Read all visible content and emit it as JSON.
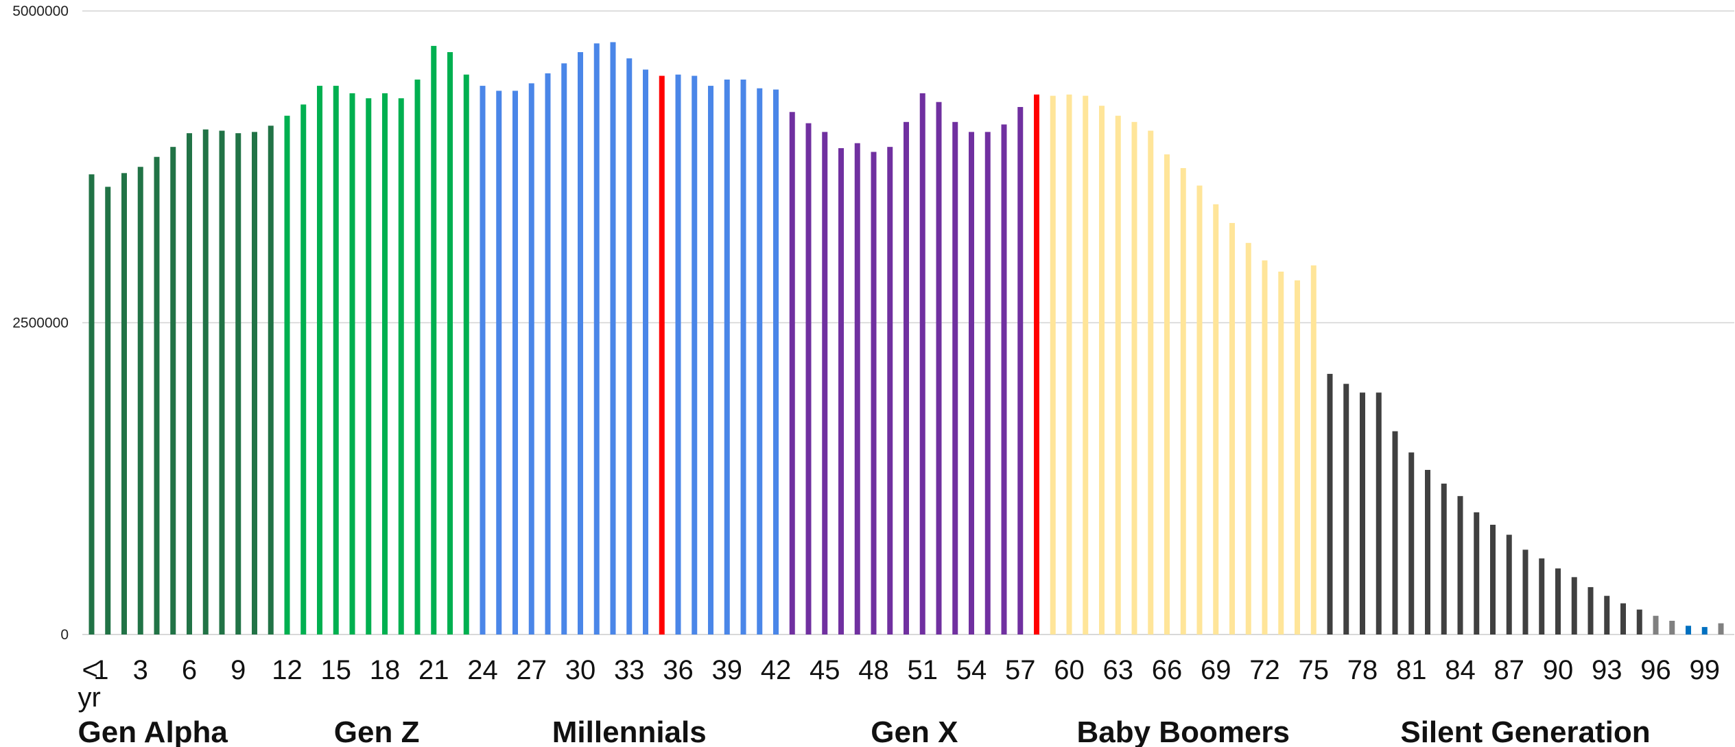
{
  "chart_data": {
    "type": "bar",
    "title": "",
    "xlabel": "",
    "ylabel": "",
    "ylim": [
      0,
      5000000
    ],
    "y_ticks": [
      0,
      2500000,
      5000000
    ],
    "grid": true,
    "legend": "none",
    "categories": [
      "< 1 yr",
      "1",
      "2",
      "3",
      "4",
      "5",
      "6",
      "7",
      "8",
      "9",
      "10",
      "11",
      "12",
      "13",
      "14",
      "15",
      "16",
      "17",
      "18",
      "19",
      "20",
      "21",
      "22",
      "23",
      "24",
      "25",
      "26",
      "27",
      "28",
      "29",
      "30",
      "31",
      "32",
      "33",
      "34",
      "35",
      "36",
      "37",
      "38",
      "39",
      "40",
      "41",
      "42",
      "43",
      "44",
      "45",
      "46",
      "47",
      "48",
      "49",
      "50",
      "51",
      "52",
      "53",
      "54",
      "55",
      "56",
      "57",
      "58",
      "59",
      "60",
      "61",
      "62",
      "63",
      "64",
      "65",
      "66",
      "67",
      "68",
      "69",
      "70",
      "71",
      "72",
      "73",
      "74",
      "75",
      "76",
      "77",
      "78",
      "79",
      "80",
      "81",
      "82",
      "83",
      "84",
      "85",
      "86",
      "87",
      "88",
      "89",
      "90",
      "91",
      "92",
      "93",
      "94",
      "95",
      "96",
      "97",
      "98",
      "99",
      "100"
    ],
    "x_tick_labels": [
      "<",
      "1",
      "3",
      "6",
      "9",
      "12",
      "15",
      "18",
      "21",
      "24",
      "27",
      "30",
      "33",
      "36",
      "39",
      "42",
      "45",
      "48",
      "51",
      "54",
      "57",
      "60",
      "63",
      "66",
      "69",
      "72",
      "75",
      "78",
      "81",
      "84",
      "87",
      "90",
      "93",
      "96",
      "99"
    ],
    "x_tick_suffix": "yr",
    "values": [
      3690000,
      3590000,
      3700000,
      3750000,
      3830000,
      3910000,
      4020000,
      4050000,
      4040000,
      4020000,
      4030000,
      4080000,
      4160000,
      4250000,
      4400000,
      4400000,
      4340000,
      4300000,
      4340000,
      4300000,
      4450000,
      4720000,
      4670000,
      4490000,
      4400000,
      4360000,
      4360000,
      4420000,
      4500000,
      4580000,
      4670000,
      4740000,
      4750000,
      4620000,
      4530000,
      4480000,
      4490000,
      4480000,
      4400000,
      4450000,
      4450000,
      4380000,
      4370000,
      4190000,
      4100000,
      4030000,
      3900000,
      3940000,
      3870000,
      3910000,
      4110000,
      4340000,
      4270000,
      4110000,
      4030000,
      4030000,
      4090000,
      4230000,
      4330000,
      4320000,
      4330000,
      4320000,
      4240000,
      4160000,
      4110000,
      4040000,
      3850000,
      3740000,
      3600000,
      3450000,
      3300000,
      3140000,
      3000000,
      2910000,
      2840000,
      2960000,
      2090000,
      2010000,
      1940000,
      1940000,
      1630000,
      1460000,
      1320000,
      1210000,
      1110000,
      980000,
      880000,
      800000,
      680000,
      610000,
      530000,
      460000,
      380000,
      310000,
      250000,
      200000,
      150000,
      110000,
      70000,
      60000,
      90000
    ],
    "colors": [
      "#217346",
      "#217346",
      "#217346",
      "#217346",
      "#217346",
      "#217346",
      "#217346",
      "#217346",
      "#217346",
      "#217346",
      "#217346",
      "#217346",
      "#00B050",
      "#00B050",
      "#00B050",
      "#00B050",
      "#00B050",
      "#00B050",
      "#00B050",
      "#00B050",
      "#00B050",
      "#00B050",
      "#00B050",
      "#00B050",
      "#4A86E8",
      "#4A86E8",
      "#4A86E8",
      "#4A86E8",
      "#4A86E8",
      "#4A86E8",
      "#4A86E8",
      "#4A86E8",
      "#4A86E8",
      "#4A86E8",
      "#4A86E8",
      "#FF0000",
      "#4A86E8",
      "#4A86E8",
      "#4A86E8",
      "#4A86E8",
      "#4A86E8",
      "#4A86E8",
      "#4A86E8",
      "#7030A0",
      "#7030A0",
      "#7030A0",
      "#7030A0",
      "#7030A0",
      "#7030A0",
      "#7030A0",
      "#7030A0",
      "#7030A0",
      "#7030A0",
      "#7030A0",
      "#7030A0",
      "#7030A0",
      "#7030A0",
      "#7030A0",
      "#FF0000",
      "#FFE599",
      "#FFE599",
      "#FFE599",
      "#FFE599",
      "#FFE599",
      "#FFE599",
      "#FFE599",
      "#FFE599",
      "#FFE599",
      "#FFE599",
      "#FFE599",
      "#FFE599",
      "#FFE599",
      "#FFE599",
      "#FFE599",
      "#FFE599",
      "#FFE599",
      "#404040",
      "#404040",
      "#404040",
      "#404040",
      "#404040",
      "#404040",
      "#404040",
      "#404040",
      "#404040",
      "#404040",
      "#404040",
      "#404040",
      "#404040",
      "#404040",
      "#404040",
      "#404040",
      "#404040",
      "#404040",
      "#404040",
      "#404040",
      "#808080",
      "#808080",
      "#0070C0",
      "#0070C0",
      "#808080"
    ],
    "generations": [
      {
        "name": "Gen Alpha",
        "first": 0,
        "last": 11
      },
      {
        "name": "Gen Z",
        "first": 12,
        "last": 23
      },
      {
        "name": "Millennials",
        "first": 24,
        "last": 42
      },
      {
        "name": "Gen X",
        "first": 43,
        "last": 58
      },
      {
        "name": "Baby Boomers",
        "first": 59,
        "last": 75
      },
      {
        "name": "Silent Generation",
        "first": 76,
        "last": 100
      }
    ]
  }
}
